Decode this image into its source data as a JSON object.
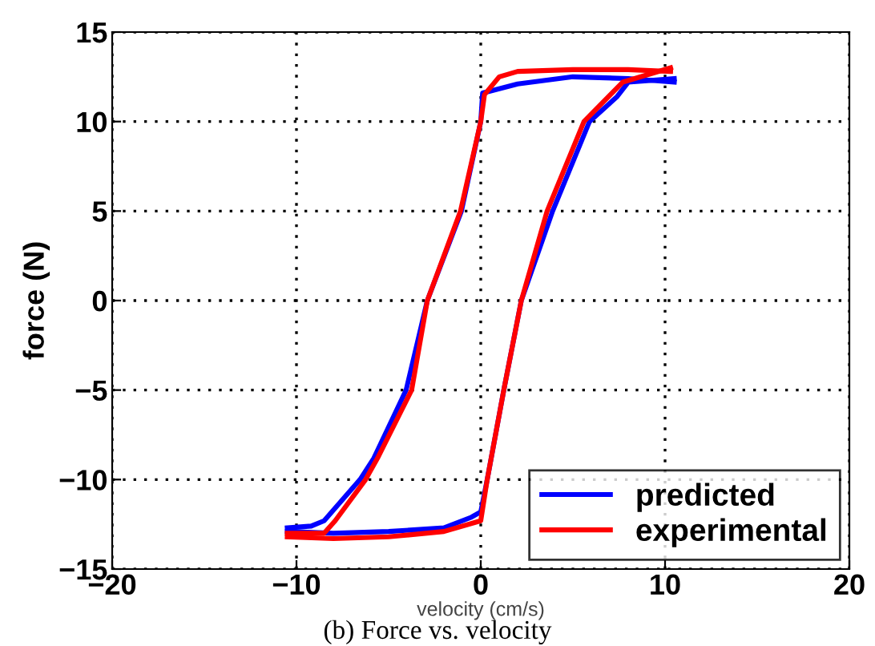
{
  "chart_data": {
    "type": "line",
    "xlabel": "velocity (cm/s)",
    "ylabel": "force (N)",
    "xlim": [
      -20,
      20
    ],
    "ylim": [
      -15,
      15
    ],
    "xticks": [
      -20,
      -10,
      0,
      10,
      20
    ],
    "yticks": [
      -15,
      -10,
      -5,
      0,
      5,
      10,
      15
    ],
    "grid": true,
    "legend": "bottom right",
    "line_style": "solid",
    "annotations": [
      "(b) Force vs. velocity"
    ],
    "series": [
      {
        "name": "predicted",
        "color": "#0000ff",
        "x": [
          10.5,
          8,
          5,
          2,
          0.5,
          0.1,
          0,
          -1.05,
          -2.9,
          -4.05,
          -5.8,
          -6.55,
          -8.5,
          -9.2,
          -10.5
        ],
        "values": [
          12.2,
          12.4,
          12.5,
          12.1,
          11.7,
          11.6,
          10,
          5,
          0,
          -5,
          -8.8,
          -10,
          -12.3,
          -12.6,
          -12.7
        ]
      },
      {
        "color": "#0000ff",
        "x": [
          -10.5,
          -8,
          -5,
          -2,
          -0.5,
          0,
          0.35,
          1.25,
          2.2,
          3.9,
          5.9,
          7.4,
          8,
          10.5
        ],
        "values": [
          -12.9,
          -13,
          -12.9,
          -12.7,
          -12.1,
          -11.8,
          -10,
          -5,
          0,
          5,
          10,
          11.4,
          12.2,
          12.4
        ]
      },
      {
        "name": "experimental",
        "color": "#ff0000",
        "x": [
          10.3,
          8,
          5,
          2,
          1,
          0.2,
          0,
          -1.1,
          -2.9,
          -3.75,
          -5.6,
          -6.25,
          -7.9,
          -8.5,
          -10.5
        ],
        "values": [
          12.8,
          12.9,
          12.9,
          12.8,
          12.5,
          11.5,
          10,
          5,
          0,
          -5,
          -8.8,
          -10,
          -12.3,
          -13,
          -13
        ]
      },
      {
        "color": "#ff0000",
        "x": [
          -10.5,
          -8,
          -5,
          -2,
          0,
          0.35,
          1.25,
          2.2,
          3.6,
          5.6,
          7.7,
          10.3
        ],
        "values": [
          -13.2,
          -13.3,
          -13.2,
          -12.9,
          -12.3,
          -10,
          -5,
          0,
          5,
          10,
          12.2,
          13
        ]
      }
    ]
  }
}
